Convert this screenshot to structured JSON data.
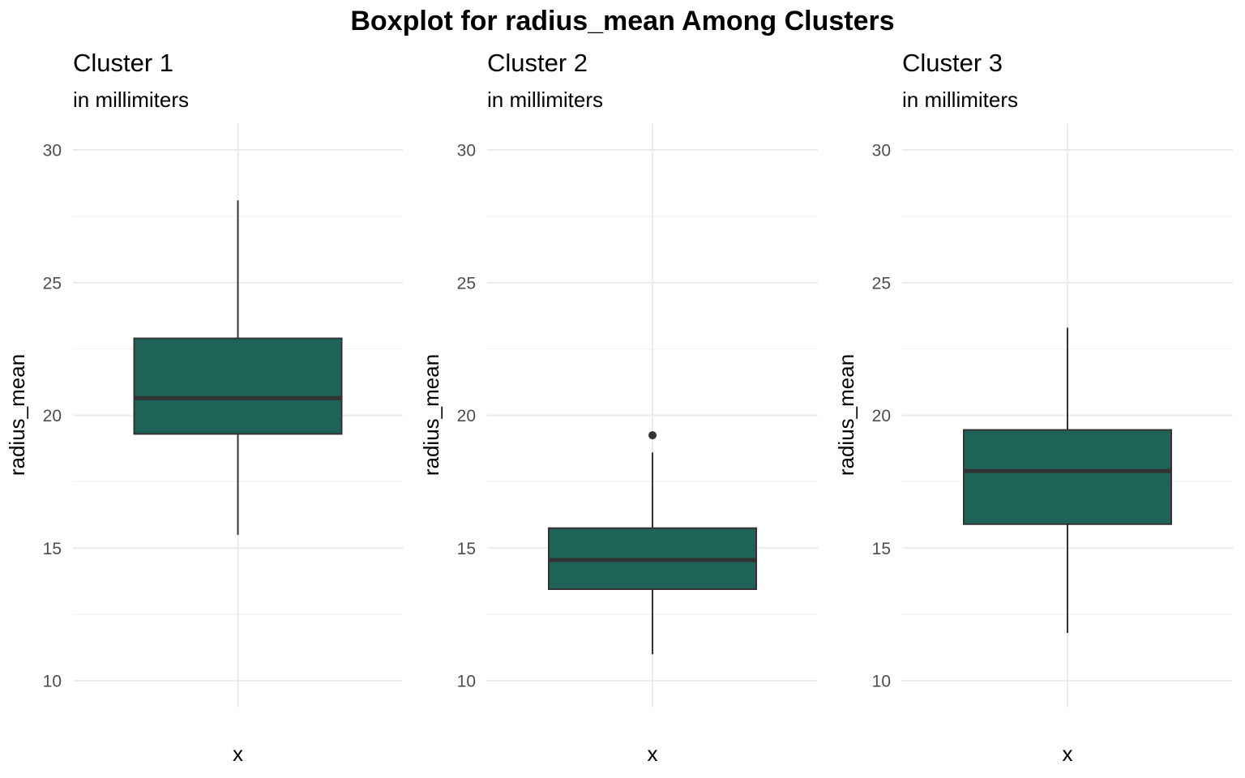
{
  "chart_data": {
    "type": "boxplot",
    "title": "Boxplot for radius_mean Among Clusters",
    "colors": {
      "box_fill": "#1F6358",
      "box_line": "#333333",
      "median_line": "#333333",
      "grid": "#EBEBEB",
      "tick_text": "#4D4D4D"
    },
    "grid": true,
    "panels": [
      {
        "title": "Cluster 1",
        "subtitle": "in millimiters",
        "xlabel": "x",
        "ylabel": "radius_mean",
        "ylim": [
          9.5,
          31
        ],
        "yticks": [
          10,
          15,
          20,
          25,
          30
        ],
        "category": "x",
        "stats": {
          "min": 15.5,
          "q1": 19.3,
          "median": 20.65,
          "q3": 22.9,
          "max": 28.1
        },
        "outliers": []
      },
      {
        "title": "Cluster 2",
        "subtitle": "in millimiters",
        "xlabel": "x",
        "ylabel": "radius_mean",
        "ylim": [
          9.5,
          31
        ],
        "yticks": [
          10,
          15,
          20,
          25,
          30
        ],
        "category": "x",
        "stats": {
          "min": 11.0,
          "q1": 13.45,
          "median": 14.55,
          "q3": 15.75,
          "max": 18.6
        },
        "outliers": [
          19.25
        ]
      },
      {
        "title": "Cluster 3",
        "subtitle": "in millimiters",
        "xlabel": "x",
        "ylabel": "radius_mean",
        "ylim": [
          9.5,
          31
        ],
        "yticks": [
          10,
          15,
          20,
          25,
          30
        ],
        "category": "x",
        "stats": {
          "min": 11.8,
          "q1": 15.9,
          "median": 17.9,
          "q3": 19.45,
          "max": 23.3
        },
        "outliers": []
      }
    ]
  }
}
